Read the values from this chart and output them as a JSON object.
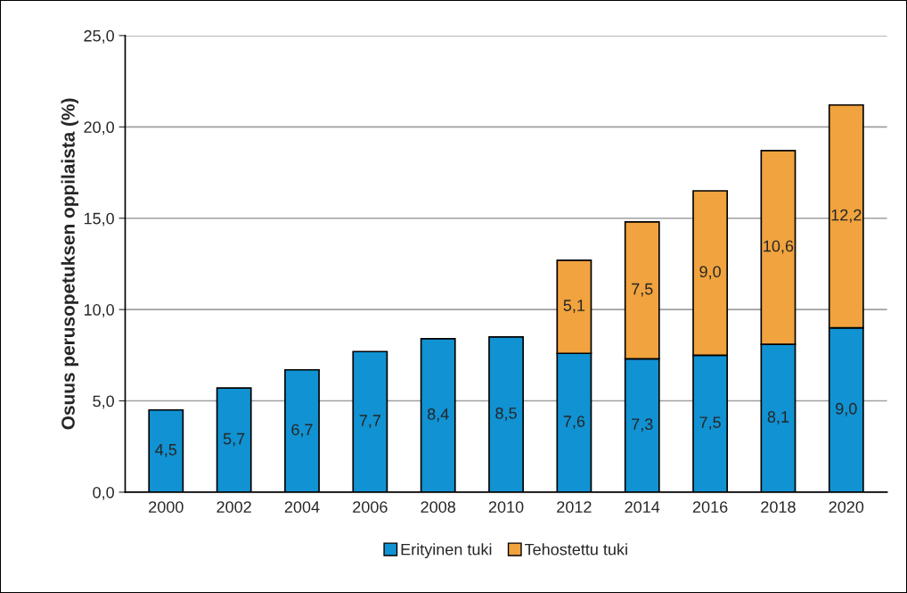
{
  "chart_data": {
    "type": "bar",
    "stacked": true,
    "ylabel": "Osuus perusopetuksen oppilaista (%)",
    "categories": [
      "2000",
      "2002",
      "2004",
      "2006",
      "2008",
      "2010",
      "2012",
      "2014",
      "2016",
      "2018",
      "2020"
    ],
    "series": [
      {
        "name": "Erityinen tuki",
        "color": "#1192d2",
        "values": [
          4.5,
          5.7,
          6.7,
          7.7,
          8.4,
          8.5,
          7.6,
          7.3,
          7.5,
          8.1,
          9.0
        ],
        "value_labels": [
          "4,5",
          "5,7",
          "6,7",
          "7,7",
          "8,4",
          "8,5",
          "7,6",
          "7,3",
          "7,5",
          "8,1",
          "9,0"
        ]
      },
      {
        "name": "Tehostettu tuki",
        "color": "#f0a33e",
        "values": [
          null,
          null,
          null,
          null,
          null,
          null,
          5.1,
          7.5,
          9.0,
          10.6,
          12.2
        ],
        "value_labels": [
          null,
          null,
          null,
          null,
          null,
          null,
          "5,1",
          "7,5",
          "9,0",
          "10,6",
          "12,2"
        ]
      }
    ],
    "ylim": [
      0,
      25
    ],
    "yticks": [
      {
        "value": 0,
        "label": "0,0"
      },
      {
        "value": 5,
        "label": "5,0"
      },
      {
        "value": 10,
        "label": "10,0"
      },
      {
        "value": 15,
        "label": "15,0"
      },
      {
        "value": 20,
        "label": "20,0"
      },
      {
        "value": 25,
        "label": "25,0"
      }
    ],
    "grid": "y",
    "legend": "bottom"
  }
}
